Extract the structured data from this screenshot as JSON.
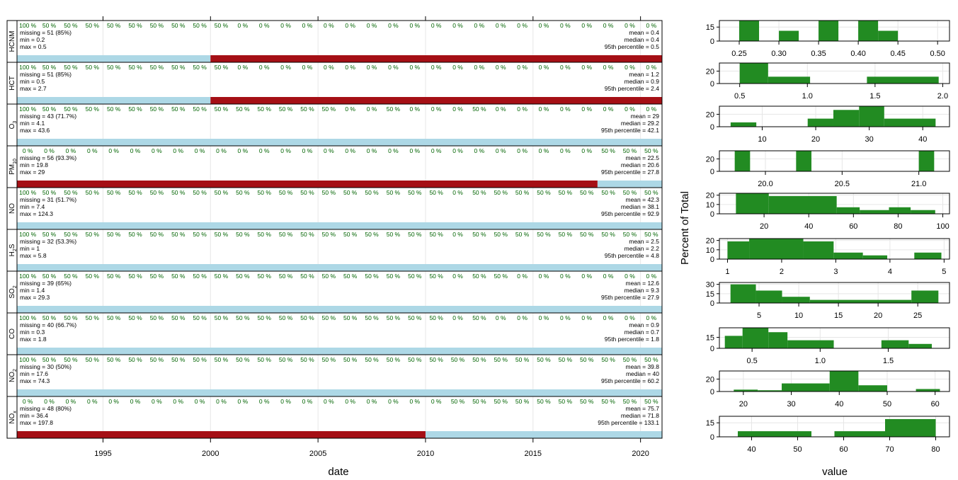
{
  "left": {
    "x_axis": {
      "label": "date",
      "min": 1991.0,
      "max": 2021.0,
      "ticks": [
        1995,
        2000,
        2005,
        2010,
        2015,
        2020
      ]
    },
    "colors": {
      "present": "#add8e6",
      "missing": "#a50f15",
      "pct_text": "#006400",
      "grid": "#e6e6e6"
    },
    "panels": [
      {
        "name": "HCNM",
        "label_main": "HCNM",
        "label_sub": "",
        "missing": "missing = 51 (85%)",
        "min": "min = 0.2",
        "max": "max = 0.5",
        "mean": "mean = 0.4",
        "median": "median = 0.4",
        "p95": "95th percentile = 0.5",
        "pct": [
          "100 %",
          "50 %",
          "50 %",
          "50 %",
          "50 %",
          "50 %",
          "50 %",
          "50 %",
          "50 %",
          "50 %",
          "0 %",
          "0 %",
          "0 %",
          "0 %",
          "0 %",
          "0 %",
          "0 %",
          "0 %",
          "0 %",
          "0 %",
          "0 %",
          "0 %",
          "0 %",
          "0 %",
          "0 %",
          "0 %",
          "0 %",
          "0 %",
          "0 %",
          "0 %"
        ],
        "bars": [
          {
            "from": 1991.0,
            "to": 2000.0,
            "status": "present"
          },
          {
            "from": 2000.0,
            "to": 2021.0,
            "status": "missing"
          }
        ]
      },
      {
        "name": "HCT",
        "label_main": "HCT",
        "label_sub": "",
        "missing": "missing = 51 (85%)",
        "min": "min = 0.5",
        "max": "max = 2.7",
        "mean": "mean = 1.2",
        "median": "median = 0.9",
        "p95": "95th percentile = 2.4",
        "pct": [
          "100 %",
          "50 %",
          "50 %",
          "50 %",
          "50 %",
          "50 %",
          "50 %",
          "50 %",
          "50 %",
          "50 %",
          "0 %",
          "0 %",
          "0 %",
          "0 %",
          "0 %",
          "0 %",
          "0 %",
          "0 %",
          "0 %",
          "0 %",
          "0 %",
          "0 %",
          "0 %",
          "0 %",
          "0 %",
          "0 %",
          "0 %",
          "0 %",
          "0 %",
          "0 %"
        ],
        "bars": [
          {
            "from": 1991.0,
            "to": 2000.0,
            "status": "present"
          },
          {
            "from": 2000.0,
            "to": 2021.0,
            "status": "missing"
          }
        ]
      },
      {
        "name": "O3",
        "label_main": "O",
        "label_sub": "3",
        "missing": "missing = 43 (71.7%)",
        "min": "min = 4.1",
        "max": "max = 43.6",
        "mean": "mean = 29",
        "median": "median = 29.2",
        "p95": "95th percentile = 42.1",
        "pct": [
          "100 %",
          "50 %",
          "50 %",
          "50 %",
          "50 %",
          "50 %",
          "50 %",
          "50 %",
          "50 %",
          "50 %",
          "50 %",
          "50 %",
          "50 %",
          "50 %",
          "50 %",
          "0 %",
          "0 %",
          "50 %",
          "0 %",
          "0 %",
          "0 %",
          "50 %",
          "0 %",
          "0 %",
          "0 %",
          "0 %",
          "0 %",
          "0 %",
          "0 %",
          "0 %"
        ],
        "bars": [
          {
            "from": 1991.0,
            "to": 2021.0,
            "status": "present"
          }
        ]
      },
      {
        "name": "PM10",
        "label_main": "PM",
        "label_sub": "10",
        "missing": "missing = 56 (93.3%)",
        "min": "min = 19.8",
        "max": "max = 29",
        "mean": "mean = 22.5",
        "median": "median = 20.6",
        "p95": "95th percentile = 27.8",
        "pct": [
          "0 %",
          "0 %",
          "0 %",
          "0 %",
          "0 %",
          "0 %",
          "0 %",
          "0 %",
          "0 %",
          "0 %",
          "0 %",
          "0 %",
          "0 %",
          "0 %",
          "0 %",
          "0 %",
          "0 %",
          "0 %",
          "0 %",
          "0 %",
          "0 %",
          "0 %",
          "0 %",
          "0 %",
          "0 %",
          "0 %",
          "0 %",
          "50 %",
          "50 %",
          "50 %"
        ],
        "bars": [
          {
            "from": 1991.0,
            "to": 2018.0,
            "status": "missing"
          },
          {
            "from": 2018.0,
            "to": 2021.0,
            "status": "present"
          }
        ]
      },
      {
        "name": "NO",
        "label_main": "NO",
        "label_sub": "",
        "missing": "missing = 31 (51.7%)",
        "min": "min = 7.4",
        "max": "max = 124.3",
        "mean": "mean = 42.3",
        "median": "median = 38.1",
        "p95": "95th percentile = 92.9",
        "pct": [
          "100 %",
          "50 %",
          "50 %",
          "50 %",
          "50 %",
          "50 %",
          "50 %",
          "50 %",
          "50 %",
          "50 %",
          "50 %",
          "50 %",
          "50 %",
          "50 %",
          "50 %",
          "50 %",
          "50 %",
          "50 %",
          "50 %",
          "50 %",
          "0 %",
          "50 %",
          "50 %",
          "50 %",
          "50 %",
          "50 %",
          "50 %",
          "50 %",
          "50 %",
          "50 %"
        ],
        "bars": [
          {
            "from": 1991.0,
            "to": 2021.0,
            "status": "present"
          }
        ]
      },
      {
        "name": "H2S",
        "label_main": "H",
        "label_sub": "2",
        "label_tail": "S",
        "missing": "missing = 32 (53.3%)",
        "min": "min = 1",
        "max": "max = 5.8",
        "mean": "mean = 2.5",
        "median": "median = 2.2",
        "p95": "95th percentile = 4.8",
        "pct": [
          "100 %",
          "50 %",
          "50 %",
          "50 %",
          "50 %",
          "50 %",
          "50 %",
          "50 %",
          "50 %",
          "50 %",
          "50 %",
          "50 %",
          "50 %",
          "50 %",
          "50 %",
          "50 %",
          "50 %",
          "50 %",
          "50 %",
          "50 %",
          "0 %",
          "50 %",
          "50 %",
          "50 %",
          "50 %",
          "50 %",
          "50 %",
          "50 %",
          "50 %",
          "50 %"
        ],
        "bars": [
          {
            "from": 1991.0,
            "to": 2021.0,
            "status": "present"
          }
        ]
      },
      {
        "name": "SO2",
        "label_main": "SO",
        "label_sub": "2",
        "missing": "missing = 39 (65%)",
        "min": "min = 1.4",
        "max": "max = 29.3",
        "mean": "mean = 12.6",
        "median": "median = 9.3",
        "p95": "95th percentile = 27.9",
        "pct": [
          "100 %",
          "50 %",
          "50 %",
          "50 %",
          "50 %",
          "50 %",
          "50 %",
          "50 %",
          "50 %",
          "50 %",
          "50 %",
          "50 %",
          "50 %",
          "50 %",
          "50 %",
          "50 %",
          "50 %",
          "50 %",
          "50 %",
          "50 %",
          "0 %",
          "50 %",
          "50 %",
          "0 %",
          "0 %",
          "0 %",
          "0 %",
          "0 %",
          "0 %",
          "0 %"
        ],
        "bars": [
          {
            "from": 1991.0,
            "to": 2021.0,
            "status": "present"
          }
        ]
      },
      {
        "name": "CO",
        "label_main": "CO",
        "label_sub": "",
        "missing": "missing = 40 (66.7%)",
        "min": "min = 0.3",
        "max": "max = 1.8",
        "mean": "mean = 0.9",
        "median": "median = 0.7",
        "p95": "95th percentile = 1.8",
        "pct": [
          "100 %",
          "50 %",
          "50 %",
          "50 %",
          "50 %",
          "50 %",
          "50 %",
          "50 %",
          "50 %",
          "50 %",
          "50 %",
          "50 %",
          "50 %",
          "50 %",
          "50 %",
          "50 %",
          "50 %",
          "50 %",
          "50 %",
          "50 %",
          "0 %",
          "50 %",
          "0 %",
          "0 %",
          "0 %",
          "0 %",
          "0 %",
          "0 %",
          "0 %",
          "0 %"
        ],
        "bars": [
          {
            "from": 1991.0,
            "to": 2021.0,
            "status": "present"
          }
        ]
      },
      {
        "name": "NO2",
        "label_main": "NO",
        "label_sub": "2",
        "missing": "missing = 30 (50%)",
        "min": "min = 17.6",
        "max": "max = 74.3",
        "mean": "mean = 39.8",
        "median": "median = 40",
        "p95": "95th percentile = 60.2",
        "pct": [
          "100 %",
          "50 %",
          "50 %",
          "50 %",
          "50 %",
          "50 %",
          "50 %",
          "50 %",
          "50 %",
          "50 %",
          "50 %",
          "50 %",
          "50 %",
          "50 %",
          "50 %",
          "50 %",
          "50 %",
          "50 %",
          "50 %",
          "50 %",
          "50 %",
          "50 %",
          "50 %",
          "50 %",
          "50 %",
          "50 %",
          "50 %",
          "50 %",
          "50 %",
          "50 %"
        ],
        "bars": [
          {
            "from": 1991.0,
            "to": 2021.0,
            "status": "present"
          }
        ]
      },
      {
        "name": "NOx",
        "label_main": "NO",
        "label_sub": "x",
        "missing": "missing = 48 (80%)",
        "min": "min = 36.4",
        "max": "max = 197.8",
        "mean": "mean = 75.7",
        "median": "median = 71.8",
        "p95": "95th percentile = 133.1",
        "pct": [
          "0 %",
          "0 %",
          "0 %",
          "0 %",
          "0 %",
          "0 %",
          "0 %",
          "0 %",
          "0 %",
          "0 %",
          "0 %",
          "0 %",
          "0 %",
          "0 %",
          "0 %",
          "0 %",
          "0 %",
          "0 %",
          "0 %",
          "0 %",
          "50 %",
          "50 %",
          "50 %",
          "50 %",
          "50 %",
          "50 %",
          "50 %",
          "50 %",
          "50 %",
          "50 %"
        ],
        "bars": [
          {
            "from": 1991.0,
            "to": 2010.0,
            "status": "missing"
          },
          {
            "from": 2010.0,
            "to": 2021.0,
            "status": "present"
          }
        ]
      }
    ]
  },
  "chart_data": [
    {
      "type": "bar",
      "title": "HCNM",
      "xlim": [
        0.225,
        0.515
      ],
      "ylim": [
        0,
        22
      ],
      "yticks": [
        0,
        15
      ],
      "xticks": [
        0.25,
        0.3,
        0.35,
        0.4,
        0.45,
        0.5
      ],
      "xtick_labels": [
        "0.25",
        "0.30",
        "0.35",
        "0.40",
        "0.45",
        "0.50"
      ],
      "bins": [
        [
          0.25,
          0.275,
          22
        ],
        [
          0.3,
          0.325,
          11
        ],
        [
          0.35,
          0.375,
          22
        ],
        [
          0.4,
          0.425,
          22
        ],
        [
          0.425,
          0.45,
          11
        ]
      ]
    },
    {
      "type": "bar",
      "title": "HCT",
      "xlim": [
        0.35,
        2.05
      ],
      "ylim": [
        0,
        33
      ],
      "yticks": [
        0,
        20
      ],
      "xticks": [
        0.5,
        1.0,
        1.5,
        2.0
      ],
      "xtick_labels": [
        "0.5",
        "1.0",
        "1.5",
        "2.0"
      ],
      "bins": [
        [
          0.5,
          0.71,
          33
        ],
        [
          0.71,
          1.02,
          11
        ],
        [
          1.44,
          1.97,
          11
        ]
      ]
    },
    {
      "type": "bar",
      "title": "O3",
      "xlim": [
        2.0,
        45.0
      ],
      "ylim": [
        0,
        33
      ],
      "yticks": [
        0,
        20
      ],
      "xticks": [
        10,
        20,
        30,
        40
      ],
      "xtick_labels": [
        "10",
        "20",
        "30",
        "40"
      ],
      "bins": [
        [
          4.1,
          8.9,
          7
        ],
        [
          18.5,
          23.3,
          13
        ],
        [
          23.3,
          28.1,
          27
        ],
        [
          28.1,
          32.8,
          33
        ],
        [
          32.8,
          42.4,
          13
        ]
      ]
    },
    {
      "type": "bar",
      "title": "PM10",
      "xlim": [
        19.7,
        21.2
      ],
      "ylim": [
        0,
        33
      ],
      "yticks": [
        0,
        20
      ],
      "xticks": [
        20.0,
        20.5,
        21.0
      ],
      "xtick_labels": [
        "20.0",
        "20.5",
        "21.0"
      ],
      "bins": [
        [
          19.8,
          19.9,
          33
        ],
        [
          20.2,
          20.3,
          33
        ],
        [
          21.0,
          21.1,
          33
        ]
      ]
    },
    {
      "type": "bar",
      "title": "NO",
      "xlim": [
        0,
        103
      ],
      "ylim": [
        0,
        22
      ],
      "yticks": [
        0,
        10,
        20
      ],
      "xticks": [
        20,
        40,
        60,
        80,
        100
      ],
      "xtick_labels": [
        "20",
        "40",
        "60",
        "80",
        "100"
      ],
      "bins": [
        [
          7.4,
          22.1,
          22
        ],
        [
          22.1,
          52.5,
          19
        ],
        [
          52.5,
          62.8,
          7
        ],
        [
          62.8,
          75.9,
          4
        ],
        [
          75.9,
          85.6,
          7
        ],
        [
          85.6,
          96.6,
          4
        ]
      ]
    },
    {
      "type": "bar",
      "title": "H2S",
      "xlim": [
        0.85,
        5.1
      ],
      "ylim": [
        0,
        22
      ],
      "yticks": [
        0,
        10,
        20
      ],
      "xticks": [
        1,
        2,
        3,
        4,
        5
      ],
      "xtick_labels": [
        "1",
        "2",
        "3",
        "4",
        "5"
      ],
      "bins": [
        [
          1.0,
          1.4,
          19
        ],
        [
          1.4,
          2.4,
          22
        ],
        [
          2.4,
          2.96,
          19
        ],
        [
          2.96,
          3.5,
          7
        ],
        [
          3.5,
          3.95,
          4
        ],
        [
          4.45,
          4.95,
          7
        ]
      ]
    },
    {
      "type": "bar",
      "title": "SO2",
      "xlim": [
        0,
        29
      ],
      "ylim": [
        0,
        33
      ],
      "yticks": [
        0,
        15,
        30
      ],
      "xticks": [
        5,
        10,
        15,
        20,
        25
      ],
      "xtick_labels": [
        "5",
        "10",
        "15",
        "20",
        "25"
      ],
      "bins": [
        [
          1.4,
          4.6,
          30
        ],
        [
          4.6,
          7.9,
          20
        ],
        [
          7.9,
          11.4,
          10
        ],
        [
          11.4,
          24.2,
          5
        ],
        [
          24.2,
          27.6,
          20
        ]
      ]
    },
    {
      "type": "bar",
      "title": "CO",
      "xlim": [
        0.26,
        1.95
      ],
      "ylim": [
        0,
        28
      ],
      "yticks": [
        0,
        15
      ],
      "xticks": [
        0.5,
        1.0,
        1.5
      ],
      "xtick_labels": [
        "0.5",
        "1.0",
        "1.5"
      ],
      "bins": [
        [
          0.3,
          0.43,
          17
        ],
        [
          0.43,
          0.62,
          28
        ],
        [
          0.62,
          0.76,
          22
        ],
        [
          0.76,
          1.1,
          11
        ],
        [
          1.45,
          1.65,
          11
        ],
        [
          1.65,
          1.82,
          6
        ]
      ]
    },
    {
      "type": "bar",
      "title": "NO2",
      "xlim": [
        15,
        63
      ],
      "ylim": [
        0,
        33
      ],
      "yticks": [
        0,
        20
      ],
      "xticks": [
        20,
        30,
        40,
        50,
        60
      ],
      "xtick_labels": [
        "20",
        "30",
        "40",
        "50",
        "60"
      ],
      "bins": [
        [
          18,
          23,
          3
        ],
        [
          23,
          28,
          2
        ],
        [
          28,
          38,
          13
        ],
        [
          38,
          44,
          33
        ],
        [
          44,
          50,
          10
        ],
        [
          56,
          61,
          4
        ]
      ]
    },
    {
      "type": "bar",
      "title": "NOx",
      "xlim": [
        33,
        83
      ],
      "ylim": [
        0,
        22
      ],
      "yticks": [
        0,
        15
      ],
      "xticks": [
        40,
        50,
        60,
        70,
        80
      ],
      "xtick_labels": [
        "40",
        "50",
        "60",
        "70",
        "80"
      ],
      "bins": [
        [
          37,
          53,
          6
        ],
        [
          58,
          69,
          6
        ],
        [
          69,
          80,
          19
        ]
      ]
    }
  ],
  "right": {
    "x_label": "value",
    "y_label": "Percent of Total",
    "bar_color": "#228b22"
  }
}
